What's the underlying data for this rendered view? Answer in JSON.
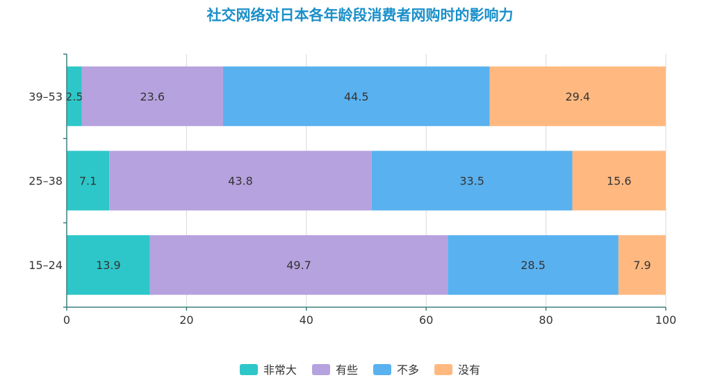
{
  "chart_data": {
    "type": "bar",
    "orientation": "horizontal",
    "stacked": true,
    "title": "社交网络对日本各年龄段消费者网购时的影响力",
    "categories": [
      "39–53",
      "25–38",
      "15–24"
    ],
    "series": [
      {
        "name": "非常大",
        "color": "#2ec7c9",
        "values": [
          2.5,
          7.1,
          13.9
        ],
        "labels": [
          "2.5",
          "7.1",
          "13.9"
        ]
      },
      {
        "name": "有些",
        "color": "#b6a2de",
        "values": [
          23.6,
          43.8,
          49.7
        ],
        "labels": [
          "23.6",
          "43.8",
          "49.7"
        ]
      },
      {
        "name": "不多",
        "color": "#5ab1ef",
        "values": [
          44.5,
          33.5,
          28.5
        ],
        "labels": [
          "44.5",
          "33.5",
          "28.5"
        ]
      },
      {
        "name": "没有",
        "color": "#ffb980",
        "values": [
          29.4,
          15.6,
          7.9
        ],
        "labels": [
          "29.4",
          "15.6",
          "7.9"
        ]
      }
    ],
    "xlim": [
      0,
      100
    ],
    "xticks": [
      0,
      20,
      40,
      60,
      80,
      100
    ],
    "xtick_labels": [
      "0",
      "20",
      "40",
      "60",
      "80",
      "100"
    ],
    "xlabel": "",
    "ylabel": "",
    "grid": "vertical",
    "legend_position": "bottom",
    "axis_color": "#3d7f7f"
  }
}
